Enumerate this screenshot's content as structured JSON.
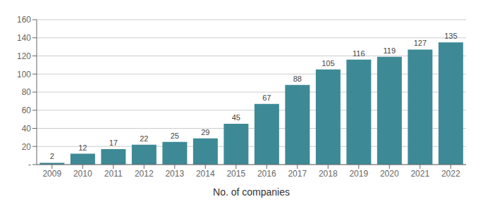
{
  "chart_data": {
    "type": "bar",
    "categories": [
      "2009",
      "2010",
      "2011",
      "2012",
      "2013",
      "2014",
      "2015",
      "2016",
      "2017",
      "2018",
      "2019",
      "2020",
      "2021",
      "2022"
    ],
    "values": [
      2,
      12,
      17,
      22,
      25,
      29,
      45,
      67,
      88,
      105,
      116,
      119,
      127,
      135
    ],
    "color": "#3d8a96",
    "xlabel": "No. of companies",
    "ylim": [
      0,
      160
    ],
    "yticks": [
      {
        "value": 0,
        "label": "-"
      },
      20,
      40,
      60,
      80,
      100,
      120,
      140,
      160
    ],
    "grid": true,
    "data_labels": true
  }
}
